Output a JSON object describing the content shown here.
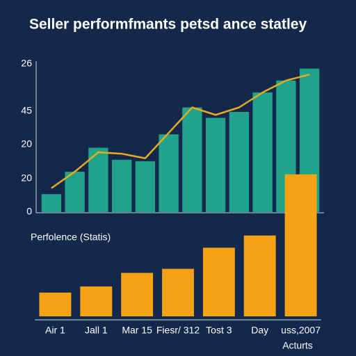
{
  "chart_data": [
    {
      "type": "bar_line",
      "title": "Seller performfmants petsd ance statley",
      "y_labels": [
        "26",
        "45",
        "20",
        "20",
        "0"
      ],
      "ylim": [
        0,
        100
      ],
      "series": [
        {
          "type": "bar",
          "color": "#1fa38a",
          "values": [
            12,
            27,
            43,
            35,
            34,
            52,
            70,
            63,
            67,
            80,
            88,
            96
          ]
        },
        {
          "type": "line",
          "color": "#e6ac1e",
          "values": [
            16,
            27,
            40,
            39,
            36,
            53,
            70,
            65,
            70,
            80,
            88,
            92
          ]
        }
      ]
    },
    {
      "type": "bar",
      "subtitle": "Perfolence (Statis)",
      "categories": [
        "Air 1",
        "Jall 1",
        "Mar 15",
        "Fiesr/ 312",
        "Tost 3",
        "Day",
        "uss,2007"
      ],
      "values": [
        35,
        44,
        64,
        70,
        101,
        119,
        209
      ],
      "color": "#f5a314",
      "ylim": [
        0,
        220
      ],
      "xlabel": "Acturts"
    }
  ]
}
